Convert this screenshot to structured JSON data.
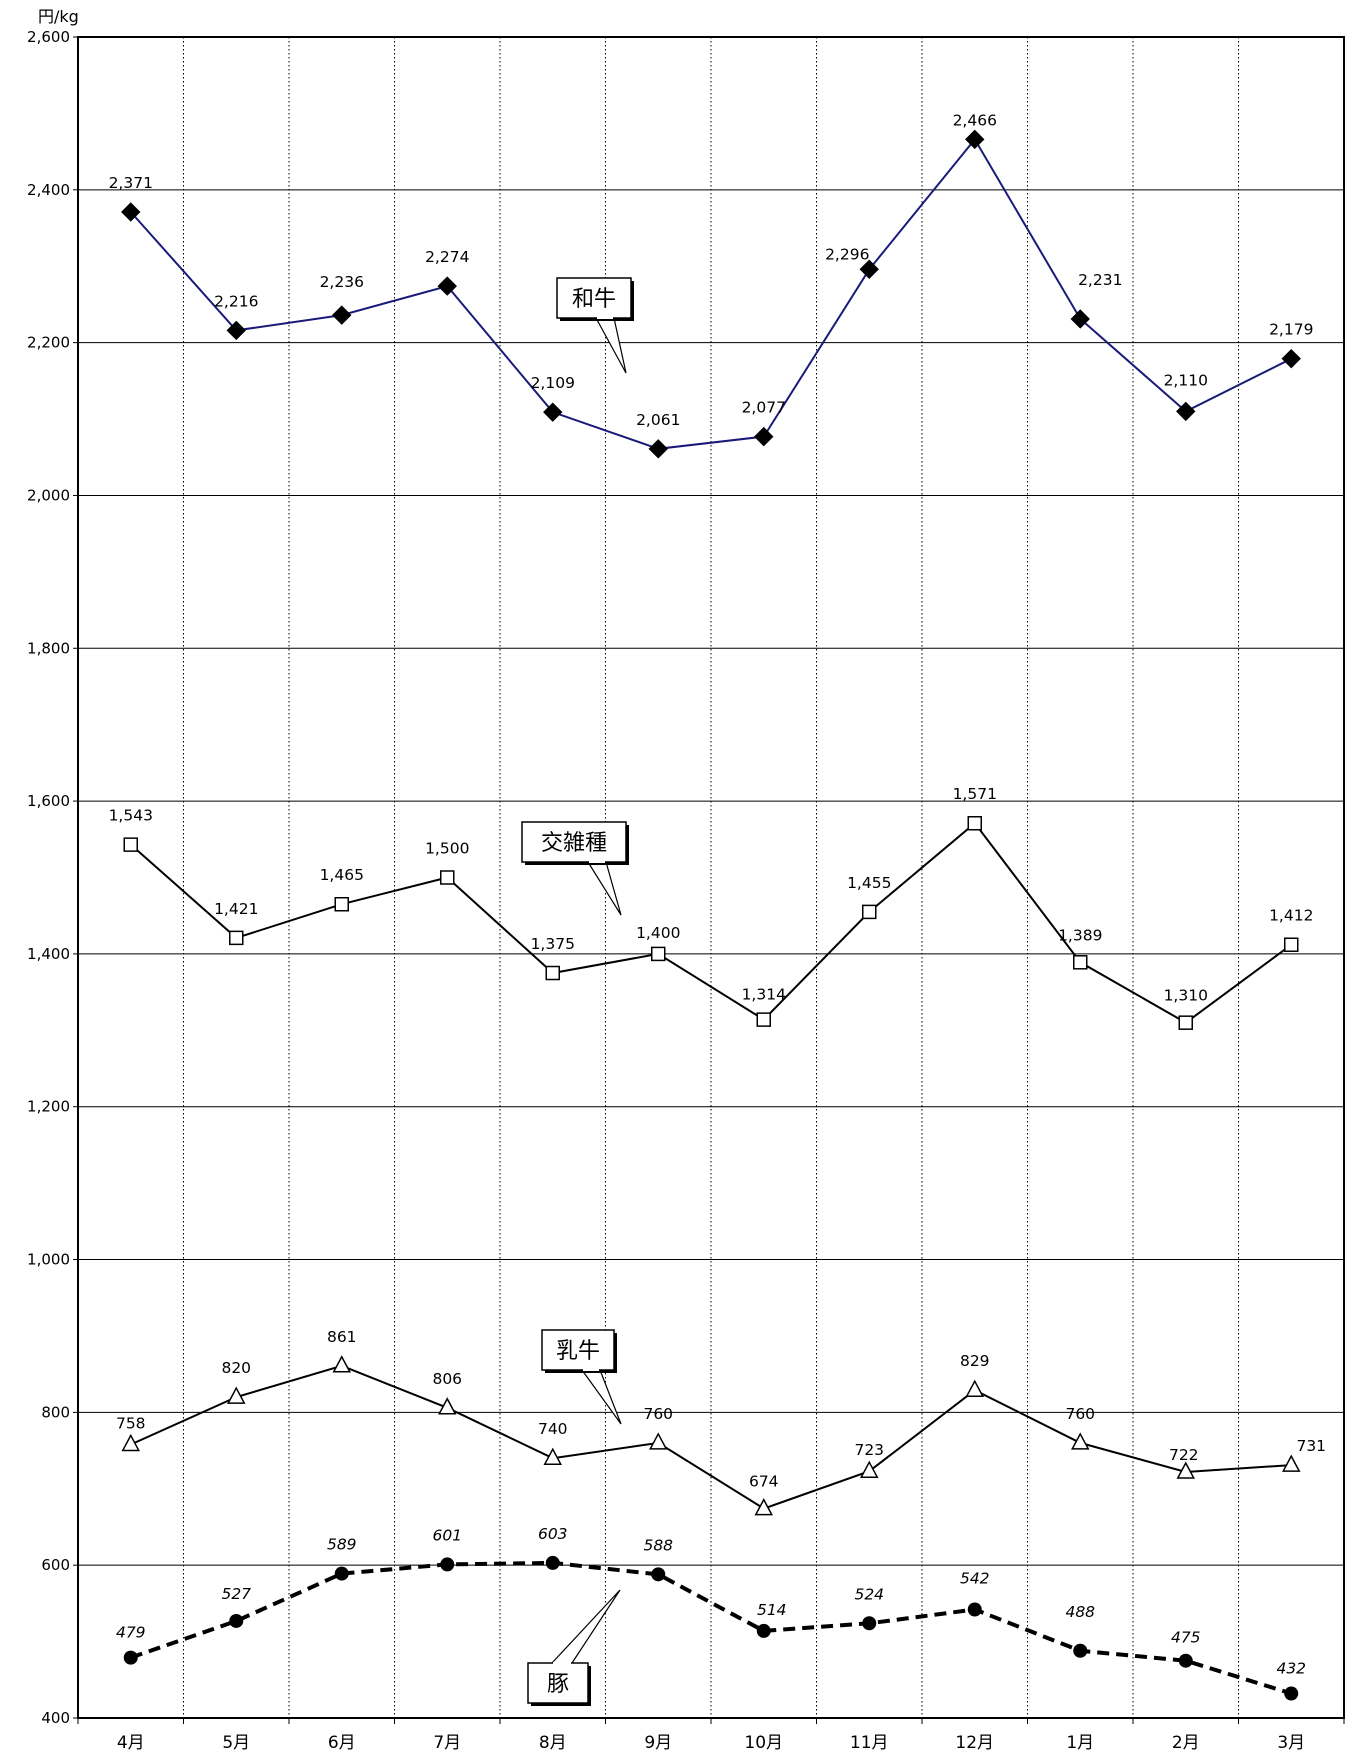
{
  "chart_data": {
    "type": "line",
    "unit_label": "円/kg",
    "categories": [
      "4月",
      "5月",
      "6月",
      "7月",
      "8月",
      "9月",
      "10月",
      "11月",
      "12月",
      "1月",
      "2月",
      "3月"
    ],
    "ylim": [
      400,
      2600
    ],
    "yticks": [
      "400",
      "600",
      "800",
      "1,000",
      "1,200",
      "1,400",
      "1,600",
      "1,800",
      "2,000",
      "2,200",
      "2,400",
      "2,600"
    ],
    "ytick_values": [
      400,
      600,
      800,
      1000,
      1200,
      1400,
      1600,
      1800,
      2000,
      2200,
      2400,
      2600
    ],
    "grid": {
      "horizontal": true,
      "vertical": true,
      "vertical_style": "dotted"
    },
    "series": [
      {
        "name": "和牛",
        "values": [
          2371,
          2216,
          2236,
          2274,
          2109,
          2061,
          2077,
          2296,
          2466,
          2231,
          2110,
          2179
        ],
        "labels": [
          "2,371",
          "2,216",
          "2,236",
          "2,274",
          "2,109",
          "2,061",
          "2,077",
          "2,296",
          "2,466",
          "2,231",
          "2,110",
          "2,179"
        ],
        "color": "#1a1a7a",
        "marker": "diamond-filled",
        "line_style": "solid"
      },
      {
        "name": "交雑種",
        "values": [
          1543,
          1421,
          1465,
          1500,
          1375,
          1400,
          1314,
          1455,
          1571,
          1389,
          1310,
          1412
        ],
        "labels": [
          "1,543",
          "1,421",
          "1,465",
          "1,500",
          "1,375",
          "1,400",
          "1,314",
          "1,455",
          "1,571",
          "1,389",
          "1,310",
          "1,412"
        ],
        "color": "#000000",
        "marker": "square-open",
        "line_style": "solid"
      },
      {
        "name": "乳牛",
        "values": [
          758,
          820,
          861,
          806,
          740,
          760,
          674,
          723,
          829,
          760,
          722,
          731
        ],
        "labels": [
          "758",
          "820",
          "861",
          "806",
          "740",
          "760",
          "674",
          "723",
          "829",
          "760",
          "722",
          "731"
        ],
        "color": "#000000",
        "marker": "triangle-open",
        "line_style": "solid"
      },
      {
        "name": "豚",
        "values": [
          479,
          527,
          589,
          601,
          603,
          588,
          514,
          524,
          542,
          488,
          475,
          432
        ],
        "labels": [
          "479",
          "527",
          "589",
          "601",
          "603",
          "588",
          "514",
          "524",
          "542",
          "488",
          "475",
          "432"
        ],
        "color": "#000000",
        "marker": "circle-filled",
        "line_style": "dashed",
        "label_style": "italic"
      }
    ],
    "callouts": [
      {
        "text": "和牛",
        "anchor_series": 0
      },
      {
        "text": "交雑種",
        "anchor_series": 1
      },
      {
        "text": "乳牛",
        "anchor_series": 2
      },
      {
        "text": "豚",
        "anchor_series": 3
      }
    ]
  }
}
